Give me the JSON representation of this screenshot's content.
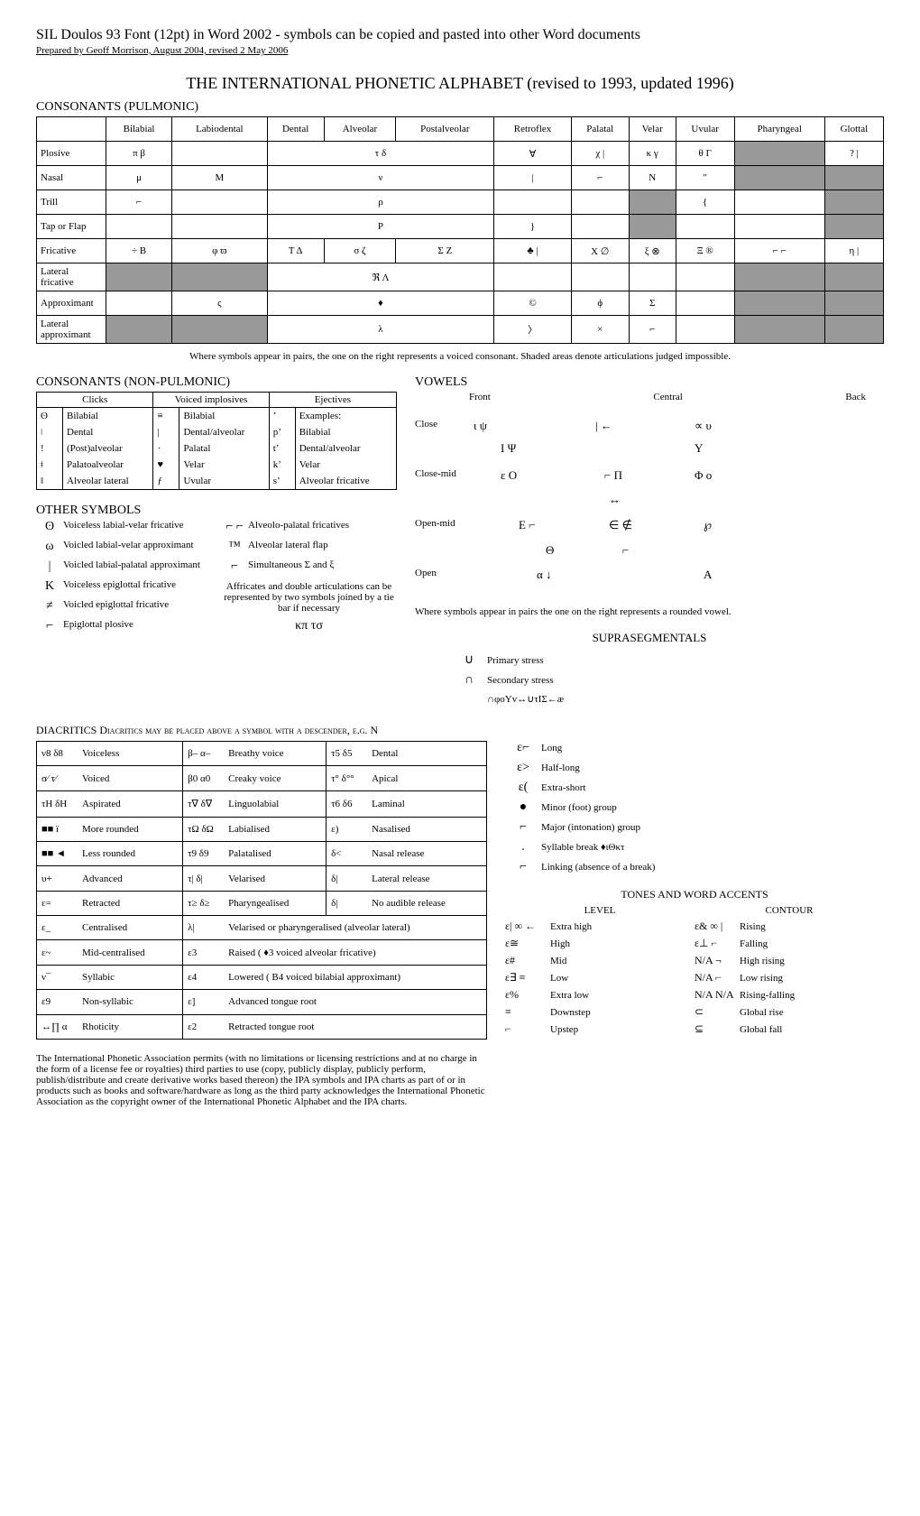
{
  "header": "SIL Doulos 93 Font (12pt) in Word 2002 - symbols can be copied and pasted into other Word documents",
  "subheader": "Prepared by Geoff Morrison, August 2004, revised 2 May 2006",
  "main_title": "THE INTERNATIONAL PHONETIC ALPHABET (revised to 1993, updated 1996)",
  "pulmonic_title": "CONSONANTS (PULMONIC)",
  "places": [
    "Bilabial",
    "Labiodental",
    "Dental",
    "Alveolar",
    "Postalveolar",
    "Retroflex",
    "Palatal",
    "Velar",
    "Uvular",
    "Pharyngeal",
    "Glottal"
  ],
  "manners": [
    "Plosive",
    "Nasal",
    "Trill",
    "Tap or Flap",
    "Fricative",
    "Lateral fricative",
    "Approximant",
    "Lateral approximant"
  ],
  "cons_note": "Where symbols appear in pairs, the one on the right represents a voiced consonant. Shaded areas denote articulations judged impossible.",
  "nonpulm_title": "CONSONANTS (NON-PULMONIC)",
  "nonpulm_headers": [
    "Clicks",
    "Voiced implosives",
    "Ejectives"
  ],
  "nonpulm_rows": [
    [
      "ʘ",
      "Bilabial",
      "≡",
      "Bilabial",
      "ʼ",
      "Examples:"
    ],
    [
      "ǀ",
      "Dental",
      "|",
      "Dental/alveolar",
      "pʼ",
      "Bilabial"
    ],
    [
      "ǃ",
      "(Post)alveolar",
      "·",
      "Palatal",
      "tʼ",
      "Dental/alveolar"
    ],
    [
      "ǂ",
      "Palatoalveolar",
      "♥",
      "Velar",
      "kʼ",
      "Velar"
    ],
    [
      "ǁ",
      "Alveolar lateral",
      "ƒ",
      "Uvular",
      "sʼ",
      "Alveolar fricative"
    ]
  ],
  "other_title": "OTHER SYMBOLS",
  "other_left": [
    [
      "ʘ",
      "Voiceless labial-velar fricative"
    ],
    [
      "ω",
      "Voicled labial-velar approximant"
    ],
    [
      "|",
      "Voicled labial-palatal approximant"
    ],
    [
      "K",
      "Voiceless epiglottal fricative"
    ],
    [
      "≠",
      "Voicled epiglottal fricative"
    ],
    [
      "⌐",
      "Epiglottal plosive"
    ]
  ],
  "other_right": [
    [
      "⌐ ⌐",
      "Alveolo-palatal fricatives"
    ],
    [
      "™",
      "Alveolar lateral flap"
    ],
    [
      "⌐",
      "Simultaneous Σ and ξ"
    ]
  ],
  "affricates_note": "Affricates and double articulations can be represented by two symbols joined by a tie bar if necessary",
  "affricates_ex": "κπ   τσ",
  "vowels_title": "VOWELS",
  "vowel_cols": [
    "Front",
    "Central",
    "Back"
  ],
  "vowel_rows": [
    "Close",
    "Close-mid",
    "Open-mid",
    "Open"
  ],
  "vowel_note": "Where symbols appear in pairs the one on the right represents a rounded vowel.",
  "supra_title": "SUPRASEGMENTALS",
  "supra_items": [
    [
      "∪",
      "Primary stress"
    ],
    [
      "∩",
      "Secondary stress"
    ],
    [
      "",
      "∩φοΥv↔∪τΙΣ←æ"
    ],
    [
      "ε⌐",
      "Long"
    ],
    [
      "ε>",
      "Half-long"
    ],
    [
      "ε(",
      "Extra-short"
    ],
    [
      "●",
      "Minor (foot) group"
    ],
    [
      "⌐",
      "Major (intonation) group"
    ],
    [
      ".",
      "Syllable break          ♦ιΘκτ"
    ],
    [
      "⌐",
      "Linking (absence of a break)"
    ]
  ],
  "diacritics_title": "DIACRITICS   Diacritics may be placed above a symbol with a descender, e.g. Ν",
  "dia_rows": [
    [
      "ν8  δ8",
      "Voiceless",
      "β–  α–",
      "Breathy voice",
      "τ5  δ5",
      "Dental"
    ],
    [
      "σ⁄  τ⁄",
      "Voiced",
      "β0  α0",
      "Creaky voice",
      "τ°  δ°°",
      "Apical"
    ],
    [
      "τΗ δΗ",
      "Aspirated",
      "τ∇  δ∇",
      "Linguolabial",
      "τ6  δ6",
      "Laminal"
    ],
    [
      "■■ ï",
      "More rounded",
      "τΩ δΩ",
      "Labialised",
      "ε)",
      "Nasalised"
    ],
    [
      "■■ ◄",
      "Less rounded",
      "τ9  δ9",
      "Palatalised",
      "δ<",
      "Nasal release"
    ],
    [
      "υ+",
      "Advanced",
      "τ|  δ|",
      "Velarised",
      "δ|",
      "Lateral release"
    ],
    [
      "ε=",
      "Retracted",
      "τ≥ δ≥",
      "Pharyngealised",
      "δ|",
      "No audible release"
    ],
    [
      "ε_",
      "Centralised",
      "λ|",
      "Velarised or pharyngeralised  (alveolar lateral)",
      "",
      ""
    ],
    [
      "ε~",
      "Mid-centralised",
      "ε3",
      "Raised     (  ♦3   voiced alveolar fricative)",
      "",
      ""
    ],
    [
      "ν¯",
      "Syllabic",
      "ε4",
      "Lowered   (  Β4   voiced bilabial approximant)",
      "",
      ""
    ],
    [
      "ε9",
      "Non-syllabic",
      "ε]",
      "Advanced tongue root",
      "",
      ""
    ],
    [
      "↔∏ α",
      "Rhoticity",
      "ε2",
      "Retracted tongue root",
      "",
      ""
    ]
  ],
  "tones_title": "TONES AND WORD ACCENTS",
  "tones_level_title": "LEVEL",
  "tones_contour_title": "CONTOUR",
  "tones_level": [
    [
      "ε| ∞ ←",
      "Extra high"
    ],
    [
      "ε≅",
      "High"
    ],
    [
      "ε#",
      "Mid"
    ],
    [
      "ε∃ ≡",
      "Low"
    ],
    [
      "ε%",
      "Extra low"
    ],
    [
      "≡",
      "Downstep"
    ],
    [
      "⌐",
      "Upstep"
    ]
  ],
  "tones_contour": [
    [
      "ε& ∞ |",
      "Rising"
    ],
    [
      "ε⊥  ⌐",
      "Falling"
    ],
    [
      "N/A  ¬",
      "High rising"
    ],
    [
      "N/A  ⌐",
      "Low rising"
    ],
    [
      "N/A  N/A",
      "Rising-falling"
    ],
    [
      "⊂",
      "Global rise"
    ],
    [
      "⊆",
      "Global fall"
    ]
  ],
  "footer": "The International Phonetic Association permits (with no limitations or licensing restrictions and at no charge in the form of a license fee or royalties) third parties to use (copy, publicly display, publicly perform, publish/distribute and create derivative works based thereon) the IPA symbols and IPA charts as part of or in products such as books and software/hardware as long as the third party acknowledges the International Phonetic Association as the copyright owner of the International Phonetic Alphabet and the IPA charts."
}
